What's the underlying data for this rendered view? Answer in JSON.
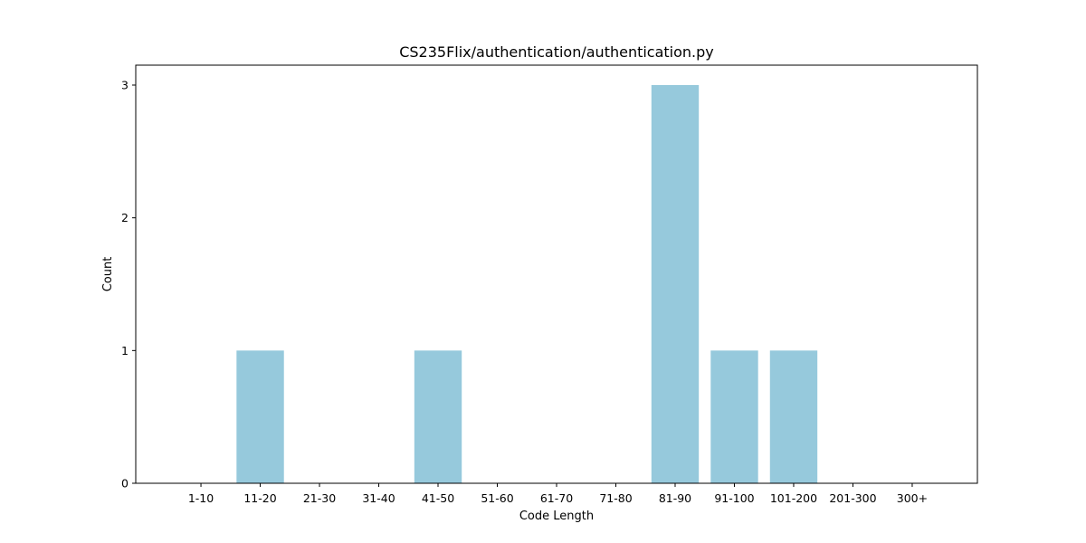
{
  "chart_data": {
    "type": "bar",
    "title": "CS235Flix/authentication/authentication.py",
    "xlabel": "Code Length",
    "ylabel": "Count",
    "categories": [
      "1-10",
      "11-20",
      "21-30",
      "31-40",
      "41-50",
      "51-60",
      "61-70",
      "71-80",
      "81-90",
      "91-100",
      "101-200",
      "201-300",
      "300+"
    ],
    "values": [
      0,
      1,
      0,
      0,
      1,
      0,
      0,
      0,
      3,
      1,
      1,
      0,
      0
    ],
    "ylim": [
      0,
      3.15
    ],
    "yticks": [
      "0",
      "1",
      "2",
      "3"
    ],
    "grid": false,
    "legend": "none",
    "bar_color": "#96c9dc"
  }
}
